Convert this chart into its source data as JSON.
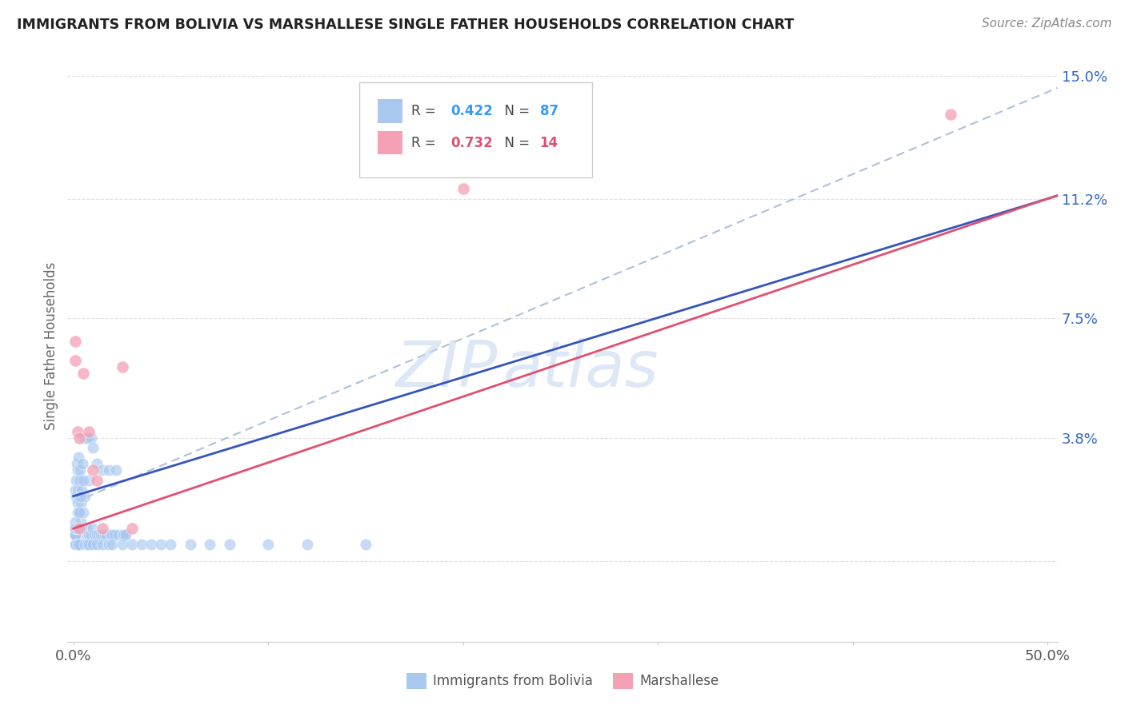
{
  "title": "IMMIGRANTS FROM BOLIVIA VS MARSHALLESE SINGLE FATHER HOUSEHOLDS CORRELATION CHART",
  "source": "Source: ZipAtlas.com",
  "ylabel_label": "Single Father Households",
  "xlim": [
    -0.003,
    0.505
  ],
  "ylim": [
    -0.025,
    0.158
  ],
  "bolivia_R": 0.422,
  "bolivia_N": 87,
  "marshallese_R": 0.732,
  "marshallese_N": 14,
  "bolivia_color": "#a8c8f0",
  "marshallese_color": "#f4a0b5",
  "bolivia_line_color": "#3355bb",
  "marshallese_line_color": "#e05070",
  "dash_color": "#b0c0d8",
  "watermark_color": "#c8d8f0",
  "background_color": "#ffffff",
  "grid_color": "#dddddd",
  "ytick_vals": [
    0.0,
    0.038,
    0.075,
    0.112,
    0.15
  ],
  "ytick_labels": [
    "",
    "3.8%",
    "7.5%",
    "11.2%",
    "15.0%"
  ],
  "xtick_vals": [
    0.0,
    0.1,
    0.2,
    0.3,
    0.4,
    0.5
  ],
  "xtick_labels": [
    "0.0%",
    "",
    "",
    "",
    "",
    "50.0%"
  ],
  "bolivia_x": [
    0.001,
    0.0012,
    0.0015,
    0.0018,
    0.002,
    0.002,
    0.002,
    0.0022,
    0.0025,
    0.003,
    0.003,
    0.003,
    0.0032,
    0.0035,
    0.004,
    0.004,
    0.0042,
    0.0045,
    0.005,
    0.005,
    0.005,
    0.006,
    0.006,
    0.006,
    0.007,
    0.007,
    0.008,
    0.008,
    0.009,
    0.009,
    0.01,
    0.01,
    0.011,
    0.012,
    0.012,
    0.013,
    0.014,
    0.015,
    0.015,
    0.016,
    0.017,
    0.018,
    0.019,
    0.02,
    0.021,
    0.022,
    0.023,
    0.025,
    0.026,
    0.027,
    0.001,
    0.001,
    0.001,
    0.0008,
    0.0008,
    0.0009,
    0.0009,
    0.001,
    0.001,
    0.001,
    0.0015,
    0.002,
    0.002,
    0.003,
    0.003,
    0.004,
    0.005,
    0.006,
    0.007,
    0.008,
    0.01,
    0.012,
    0.015,
    0.018,
    0.02,
    0.025,
    0.03,
    0.035,
    0.04,
    0.045,
    0.05,
    0.06,
    0.07,
    0.08,
    0.1,
    0.12,
    0.15
  ],
  "bolivia_y": [
    0.022,
    0.025,
    0.02,
    0.03,
    0.018,
    0.022,
    0.028,
    0.015,
    0.032,
    0.01,
    0.02,
    0.025,
    0.015,
    0.028,
    0.012,
    0.018,
    0.022,
    0.03,
    0.008,
    0.015,
    0.038,
    0.01,
    0.02,
    0.038,
    0.01,
    0.038,
    0.008,
    0.025,
    0.008,
    0.038,
    0.01,
    0.035,
    0.008,
    0.008,
    0.03,
    0.008,
    0.008,
    0.008,
    0.028,
    0.008,
    0.008,
    0.028,
    0.008,
    0.008,
    0.008,
    0.028,
    0.008,
    0.008,
    0.008,
    0.008,
    0.008,
    0.01,
    0.012,
    0.005,
    0.008,
    0.005,
    0.008,
    0.005,
    0.008,
    0.01,
    0.005,
    0.005,
    0.01,
    0.005,
    0.015,
    0.02,
    0.025,
    0.005,
    0.005,
    0.005,
    0.005,
    0.005,
    0.005,
    0.005,
    0.005,
    0.005,
    0.005,
    0.005,
    0.005,
    0.005,
    0.005,
    0.005,
    0.005,
    0.005,
    0.005,
    0.005,
    0.005
  ],
  "marshallese_x": [
    0.001,
    0.001,
    0.002,
    0.003,
    0.005,
    0.008,
    0.01,
    0.012,
    0.015,
    0.025,
    0.03,
    0.2,
    0.45,
    0.003
  ],
  "marshallese_y": [
    0.062,
    0.068,
    0.04,
    0.038,
    0.058,
    0.04,
    0.028,
    0.025,
    0.01,
    0.06,
    0.01,
    0.115,
    0.138,
    0.01
  ],
  "bolivia_line": [
    0.0,
    0.5,
    0.02,
    0.112
  ],
  "marshallese_line": [
    0.0,
    0.5,
    0.01,
    0.112
  ],
  "dash_line": [
    0.0,
    0.5,
    0.018,
    0.145
  ]
}
